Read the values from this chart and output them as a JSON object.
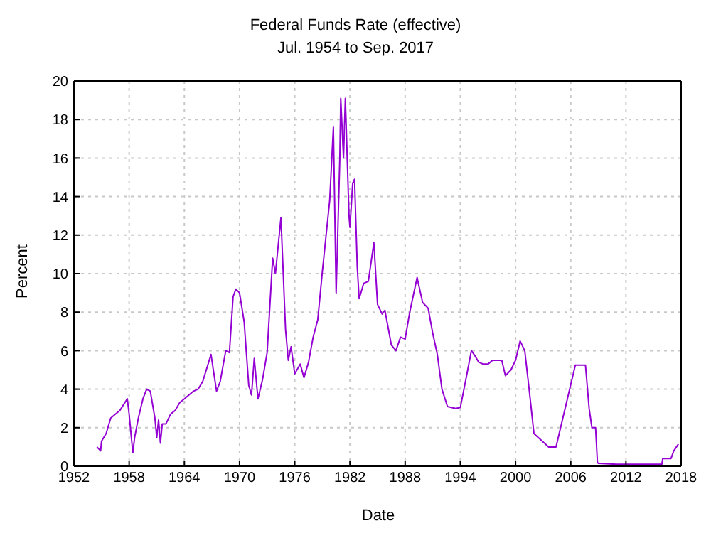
{
  "chart_data": {
    "type": "line",
    "title": "Federal Funds Rate (effective)",
    "subtitle": "Jul. 1954 to Sep. 2017",
    "xlabel": "Date",
    "ylabel": "Percent",
    "x": [
      1954.5,
      1954.9,
      1955.0,
      1955.5,
      1956.0,
      1956.5,
      1957.0,
      1957.8,
      1958.0,
      1958.4,
      1958.6,
      1959.0,
      1959.5,
      1959.9,
      1960.3,
      1960.8,
      1961.0,
      1961.2,
      1961.4,
      1961.6,
      1962.0,
      1962.5,
      1963.0,
      1963.5,
      1964.0,
      1965.0,
      1965.5,
      1966.0,
      1966.9,
      1967.5,
      1967.9,
      1968.5,
      1968.9,
      1969.3,
      1969.6,
      1970.0,
      1970.5,
      1971.0,
      1971.3,
      1971.6,
      1972.0,
      1972.5,
      1973.0,
      1973.6,
      1973.9,
      1974.5,
      1975.0,
      1975.3,
      1975.6,
      1976.0,
      1976.6,
      1977.0,
      1977.5,
      1978.0,
      1978.5,
      1979.0,
      1979.8,
      1980.2,
      1980.5,
      1980.9,
      1981.0,
      1981.3,
      1981.5,
      1981.9,
      1982.0,
      1982.3,
      1982.5,
      1982.8,
      1983.0,
      1983.5,
      1984.0,
      1984.6,
      1985.0,
      1985.5,
      1985.8,
      1986.5,
      1987.0,
      1987.5,
      1988.0,
      1988.5,
      1989.3,
      1989.9,
      1990.5,
      1991.0,
      1991.5,
      1992.0,
      1992.6,
      1993.5,
      1994.0,
      1994.6,
      1995.2,
      1995.5,
      1996.0,
      1996.5,
      1997.0,
      1997.5,
      1998.5,
      1998.9,
      1999.5,
      2000.0,
      2000.5,
      2001.0,
      2001.5,
      2002.0,
      2002.9,
      2003.6,
      2004.4,
      2006.5,
      2007.6,
      2008.0,
      2008.3,
      2008.7,
      2008.9,
      2009.0,
      2011.0,
      2015.9,
      2016.0,
      2016.9,
      2017.2,
      2017.7
    ],
    "series": [
      {
        "color": "#9400d3",
        "values": [
          1.0,
          0.8,
          1.3,
          1.7,
          2.5,
          2.7,
          2.9,
          3.5,
          2.7,
          0.7,
          1.5,
          2.5,
          3.5,
          4.0,
          3.9,
          2.5,
          1.5,
          2.4,
          1.2,
          2.2,
          2.2,
          2.7,
          2.9,
          3.3,
          3.5,
          3.9,
          4.0,
          4.4,
          5.8,
          3.9,
          4.4,
          6.0,
          5.9,
          8.8,
          9.2,
          9.0,
          7.5,
          4.2,
          3.7,
          5.6,
          3.5,
          4.5,
          5.9,
          10.8,
          10.0,
          12.9,
          7.1,
          5.5,
          6.2,
          4.8,
          5.3,
          4.6,
          5.4,
          6.7,
          7.6,
          10.1,
          13.8,
          17.6,
          9.0,
          16.0,
          19.1,
          16.0,
          19.1,
          13.0,
          12.4,
          14.7,
          14.9,
          10.3,
          8.7,
          9.5,
          9.6,
          11.6,
          8.4,
          7.9,
          8.1,
          6.3,
          6.0,
          6.7,
          6.6,
          8.0,
          9.8,
          8.5,
          8.2,
          6.9,
          5.8,
          4.0,
          3.1,
          3.0,
          3.05,
          4.5,
          6.0,
          5.8,
          5.4,
          5.3,
          5.3,
          5.5,
          5.5,
          4.7,
          5.0,
          5.5,
          6.5,
          6.0,
          3.9,
          1.7,
          1.3,
          1.0,
          1.0,
          5.25,
          5.25,
          3.0,
          2.0,
          2.0,
          0.2,
          0.15,
          0.1,
          0.1,
          0.4,
          0.4,
          0.8,
          1.15
        ]
      }
    ],
    "xlim": [
      1952,
      2018
    ],
    "xticks": [
      1952,
      1958,
      1964,
      1970,
      1976,
      1982,
      1988,
      1994,
      2000,
      2006,
      2012,
      2018
    ],
    "ylim": [
      0,
      20
    ],
    "yticks": [
      0,
      2,
      4,
      6,
      8,
      10,
      12,
      14,
      16,
      18,
      20
    ],
    "grid": true,
    "line_style": "solid",
    "marker": "none"
  }
}
